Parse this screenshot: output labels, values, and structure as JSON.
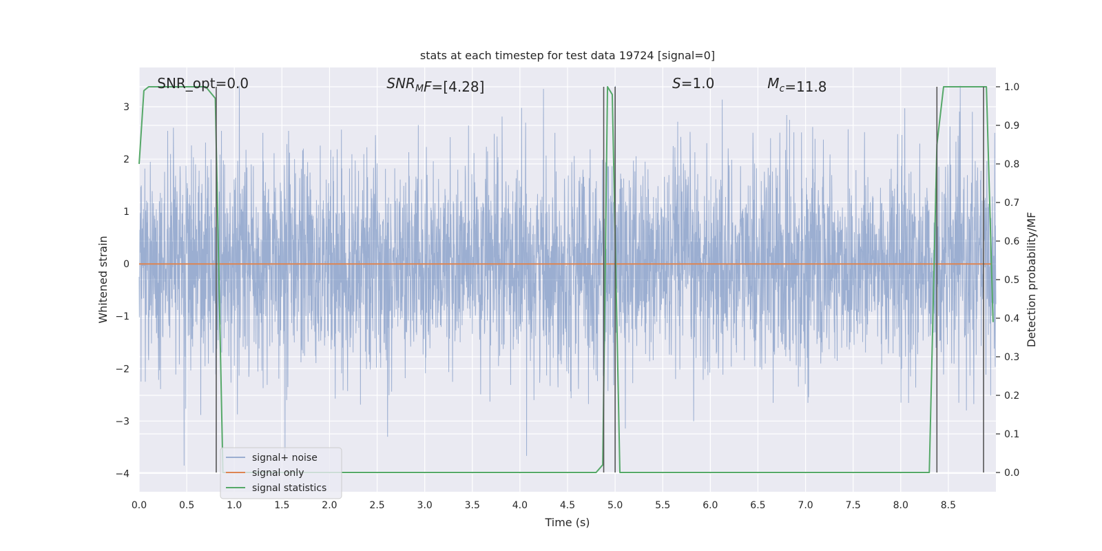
{
  "chart_data": {
    "type": "line",
    "title": "stats at each timestep for test data 19724 [signal=0]",
    "xlabel": "Time (s)",
    "ylabel_left": "Whitened strain",
    "ylabel_right": "Detection probability/MF",
    "xlim": [
      0.0,
      9.0
    ],
    "ylim_left": [
      -4.35,
      3.75
    ],
    "ylim_right": [
      -0.05,
      1.05
    ],
    "x_ticks": [
      0.0,
      0.5,
      1.0,
      1.5,
      2.0,
      2.5,
      3.0,
      3.5,
      4.0,
      4.5,
      5.0,
      5.5,
      6.0,
      6.5,
      7.0,
      7.5,
      8.0,
      8.5
    ],
    "x_tick_labels": [
      "0.0",
      "0.5",
      "1.0",
      "1.5",
      "2.0",
      "2.5",
      "3.0",
      "3.5",
      "4.0",
      "4.5",
      "5.0",
      "5.5",
      "6.0",
      "6.5",
      "7.0",
      "7.5",
      "8.0",
      "8.5"
    ],
    "y_ticks_left": [
      -4,
      -3,
      -2,
      -1,
      0,
      1,
      2,
      3
    ],
    "y_tick_labels_left": [
      "−4",
      "−3",
      "−2",
      "−1",
      "0",
      "1",
      "2",
      "3"
    ],
    "y_ticks_right": [
      0.0,
      0.1,
      0.2,
      0.3,
      0.4,
      0.5,
      0.6,
      0.7,
      0.8,
      0.9,
      1.0
    ],
    "y_tick_labels_right": [
      "0.0",
      "0.1",
      "0.2",
      "0.3",
      "0.4",
      "0.5",
      "0.6",
      "0.7",
      "0.8",
      "0.9",
      "1.0"
    ],
    "grid": true,
    "legend_position": "lower-left",
    "annotations": [
      {
        "x": 0.19,
        "y": 3.45,
        "parts": [
          {
            "text": "SNR_opt=0.0",
            "italic": false
          }
        ]
      },
      {
        "x": 2.6,
        "y": 3.45,
        "parts": [
          {
            "text": "SNR",
            "italic": true
          },
          {
            "text": "M",
            "italic": true,
            "sub": true
          },
          {
            "text": "F",
            "italic": true
          },
          {
            "text": "=[4.28]",
            "italic": false
          }
        ]
      },
      {
        "x": 5.6,
        "y": 3.45,
        "parts": [
          {
            "text": "S",
            "italic": true
          },
          {
            "text": "=1.0",
            "italic": false
          }
        ]
      },
      {
        "x": 6.6,
        "y": 3.45,
        "parts": [
          {
            "text": "M",
            "italic": true
          },
          {
            "text": "c",
            "italic": true,
            "sub": true
          },
          {
            "text": "=11.8",
            "italic": false
          }
        ]
      }
    ],
    "series": [
      {
        "name": "signal+ noise",
        "color": "#4c72b0",
        "opacity": 0.5,
        "axis": "left",
        "noise_band": {
          "x_start": 0.0,
          "x_end": 9.0,
          "core_sigma": 1.0,
          "min": -4.0,
          "max": 3.4
        }
      },
      {
        "name": "signal only",
        "color": "#dd8452",
        "axis": "left",
        "x": [
          0.0,
          8.95
        ],
        "y": [
          0.0,
          0.0
        ]
      },
      {
        "name": "signal statistics",
        "color": "#55a868",
        "axis": "right",
        "x": [
          0.0,
          0.05,
          0.1,
          0.7,
          0.8,
          0.88,
          4.8,
          4.87,
          4.92,
          4.97,
          5.05,
          8.3,
          8.38,
          8.45,
          8.9,
          8.97
        ],
        "y": [
          0.8,
          0.99,
          1.0,
          1.0,
          0.97,
          0.0,
          0.0,
          0.02,
          1.0,
          0.98,
          0.0,
          0.0,
          0.85,
          1.0,
          1.0,
          0.39
        ]
      }
    ],
    "vertical_lines": {
      "color": "#555555",
      "x": [
        0.81,
        4.88,
        5.0,
        8.38,
        8.87
      ],
      "y_range_right": [
        0.0,
        1.0
      ]
    }
  }
}
